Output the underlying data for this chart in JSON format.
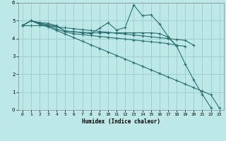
{
  "xlabel": "Humidex (Indice chaleur)",
  "bg_color": "#bde8e8",
  "grid_color": "#a0d0d0",
  "line_color": "#2a7070",
  "xlim": [
    -0.5,
    23.5
  ],
  "ylim": [
    0,
    6
  ],
  "xticks": [
    0,
    1,
    2,
    3,
    4,
    5,
    6,
    7,
    8,
    9,
    10,
    11,
    12,
    13,
    14,
    15,
    16,
    17,
    18,
    19,
    20,
    21,
    22,
    23
  ],
  "yticks": [
    0,
    1,
    2,
    3,
    4,
    5,
    6
  ],
  "series": [
    {
      "x": [
        0,
        1,
        2,
        3,
        4,
        5,
        6,
        7,
        8,
        9,
        10,
        11,
        12,
        13,
        14,
        15,
        16,
        17,
        18,
        19,
        20,
        21,
        22
      ],
      "y": [
        4.72,
        5.0,
        4.9,
        4.85,
        4.72,
        4.42,
        4.38,
        4.32,
        4.28,
        4.58,
        4.88,
        4.48,
        4.62,
        5.88,
        5.28,
        5.33,
        4.82,
        4.12,
        3.58,
        2.58,
        1.68,
        0.88,
        0.13
      ]
    },
    {
      "x": [
        0,
        1,
        2,
        3,
        4,
        5,
        6,
        7,
        8,
        9,
        10,
        11,
        12,
        13,
        14,
        15,
        16,
        17,
        18
      ],
      "y": [
        4.72,
        5.0,
        4.85,
        4.78,
        4.68,
        4.42,
        4.38,
        4.35,
        4.32,
        4.32,
        4.32,
        4.32,
        4.32,
        4.32,
        4.32,
        4.32,
        4.28,
        4.08,
        3.58
      ]
    },
    {
      "x": [
        0,
        1,
        2,
        3,
        4,
        5,
        6,
        7,
        8,
        9,
        10,
        11,
        12,
        13,
        14,
        15,
        16,
        17,
        18,
        19
      ],
      "y": [
        4.72,
        5.0,
        4.82,
        4.72,
        4.52,
        4.37,
        4.27,
        4.22,
        4.17,
        4.12,
        4.07,
        4.02,
        3.97,
        3.92,
        3.87,
        3.82,
        3.77,
        3.72,
        3.62,
        3.57
      ]
    },
    {
      "x": [
        0,
        1,
        2,
        3,
        4,
        5,
        6,
        7,
        8,
        9,
        10,
        11,
        12,
        13,
        14,
        15,
        16,
        17,
        18,
        19,
        20,
        21,
        22,
        23
      ],
      "y": [
        4.72,
        5.0,
        4.8,
        4.65,
        4.45,
        4.25,
        4.05,
        3.85,
        3.65,
        3.45,
        3.25,
        3.05,
        2.85,
        2.65,
        2.45,
        2.25,
        2.05,
        1.85,
        1.65,
        1.45,
        1.25,
        1.05,
        0.85,
        0.1
      ]
    },
    {
      "x": [
        0,
        1,
        2,
        3,
        4,
        5,
        6,
        7,
        8,
        9,
        10,
        11,
        12,
        13,
        14,
        15,
        16,
        17,
        18,
        19,
        20
      ],
      "y": [
        4.72,
        4.72,
        4.72,
        4.7,
        4.65,
        4.6,
        4.55,
        4.5,
        4.45,
        4.4,
        4.35,
        4.3,
        4.25,
        4.2,
        4.15,
        4.1,
        4.05,
        4.0,
        3.95,
        3.9,
        3.62
      ]
    }
  ]
}
